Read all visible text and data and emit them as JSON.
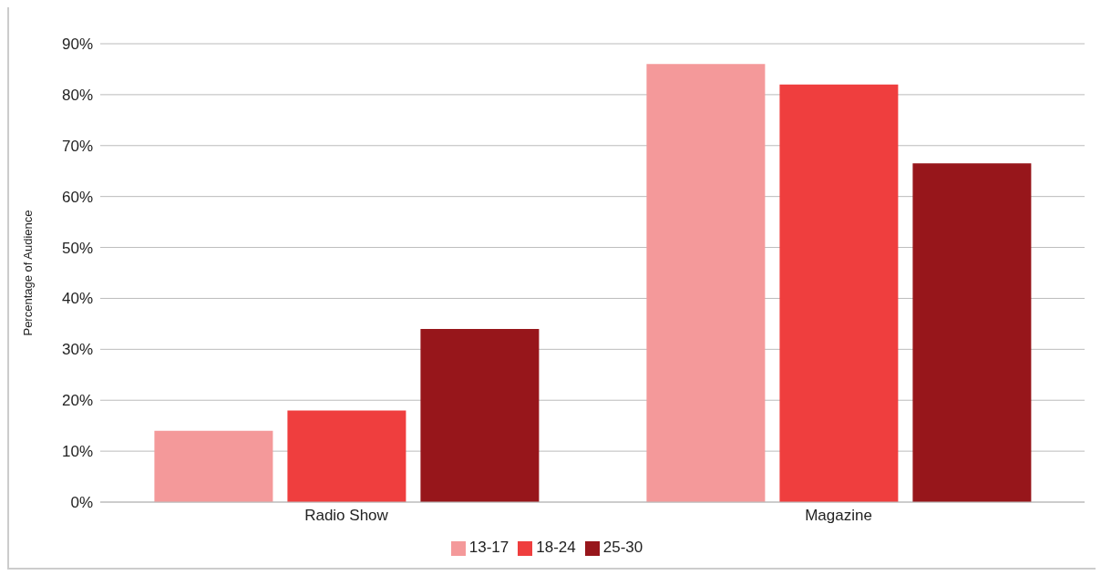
{
  "chart_data": {
    "type": "bar",
    "ylabel": "Percentage of Audience",
    "categories": [
      "Radio Show",
      "Magazine"
    ],
    "series": [
      {
        "name": "13-17",
        "color": "#f4999a",
        "values": [
          14,
          86
        ]
      },
      {
        "name": "18-24",
        "color": "#ef3e3e",
        "values": [
          18,
          82
        ]
      },
      {
        "name": "25-30",
        "color": "#97161b",
        "values": [
          34,
          66.5
        ]
      }
    ],
    "ylim": [
      0,
      90
    ],
    "yticks": [
      {
        "value": 0,
        "label": "0%"
      },
      {
        "value": 10,
        "label": "10%"
      },
      {
        "value": 20,
        "label": "20%"
      },
      {
        "value": 30,
        "label": "30%"
      },
      {
        "value": 40,
        "label": "40%"
      },
      {
        "value": 50,
        "label": "50%"
      },
      {
        "value": 60,
        "label": "60%"
      },
      {
        "value": 70,
        "label": "70%"
      },
      {
        "value": 80,
        "label": "80%"
      },
      {
        "value": 90,
        "label": "90%"
      }
    ],
    "grid": "y",
    "legend": "bottom"
  }
}
